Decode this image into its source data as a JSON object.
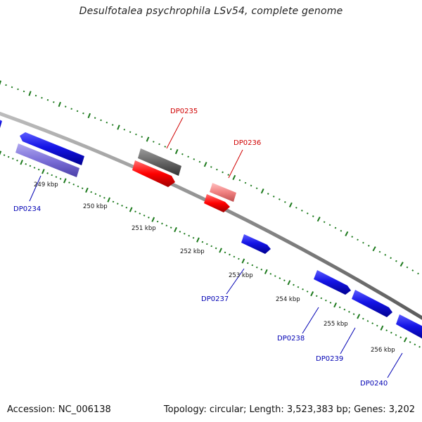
{
  "title": "Desulfotalea psychrophila LSv54, complete genome",
  "footer": {
    "accession": "Accession: NC_006138",
    "summary": "Topology: circular; Length: 3,523,383 bp; Genes: 3,202"
  },
  "colors": {
    "backbone": "#8a8a8a",
    "tick": "#1d7a1d",
    "forward_gene": "#1414e6",
    "reverse_gene": "#1414e6",
    "light_gene": "#7b6fd8",
    "red_gene": "#ff0000",
    "pink_gene": "#f08080",
    "grey_gene": "#666666",
    "label_blue": "#0000b4",
    "label_red": "#d00000"
  },
  "kbp_labels": [
    "249 kbp",
    "250 kbp",
    "251 kbp",
    "252 kbp",
    "253 kbp",
    "254 kbp",
    "255 kbp",
    "256 kbp"
  ],
  "gene_labels": [
    {
      "text": "DP0234",
      "color": "blue"
    },
    {
      "text": "DP0235",
      "color": "red"
    },
    {
      "text": "DP0236",
      "color": "red"
    },
    {
      "text": "DP0237",
      "color": "blue"
    },
    {
      "text": "DP0238",
      "color": "blue"
    },
    {
      "text": "DP0239",
      "color": "blue"
    },
    {
      "text": "DP0240",
      "color": "blue"
    }
  ]
}
